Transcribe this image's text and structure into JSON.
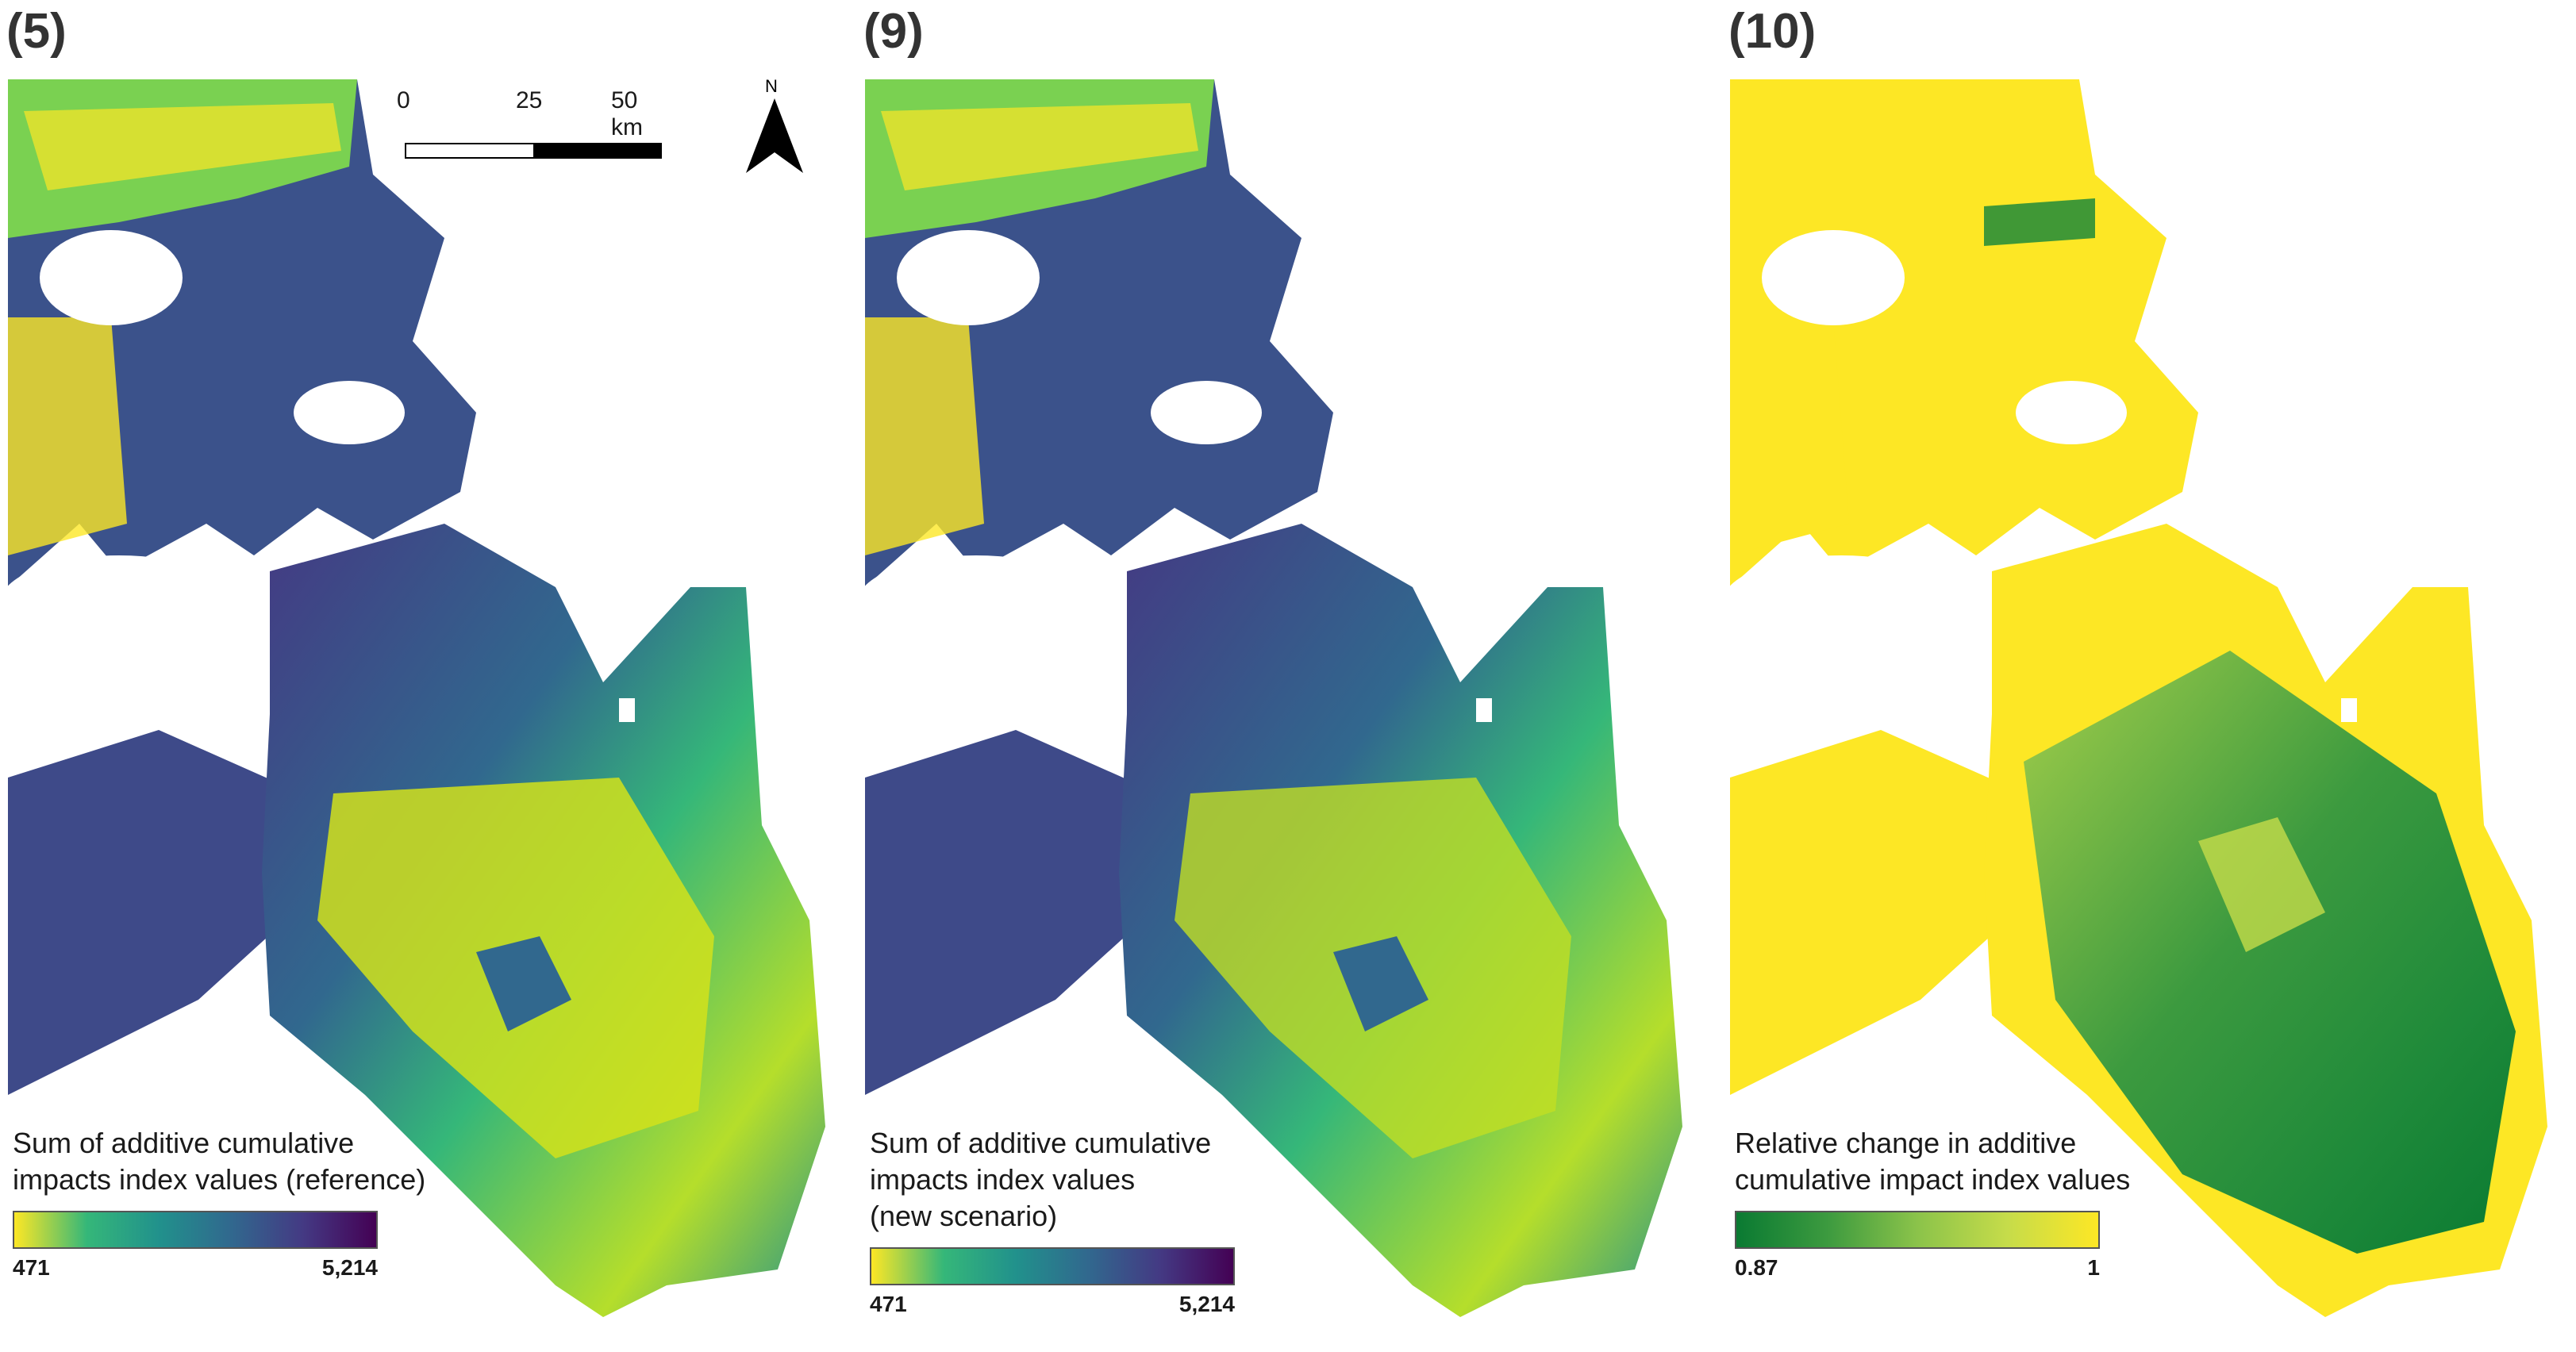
{
  "panels": [
    {
      "label": "(5)",
      "legend": {
        "title_lines": [
          "Sum of additive cumulative",
          "impacts index values (reference)"
        ],
        "min_label": "471",
        "max_label": "5,214",
        "ramp": [
          "#fde725",
          "#35b779",
          "#21918c",
          "#31688e",
          "#443983",
          "#440154"
        ]
      }
    },
    {
      "label": "(9)",
      "legend": {
        "title_lines": [
          "Sum of additive cumulative",
          "impacts index values",
          "(new scenario)"
        ],
        "min_label": "471",
        "max_label": "5,214",
        "ramp": [
          "#fde725",
          "#35b779",
          "#21918c",
          "#31688e",
          "#443983",
          "#440154"
        ]
      }
    },
    {
      "label": "(10)",
      "legend": {
        "title_lines": [
          "Relative change in additive",
          "cumulative impact index values"
        ],
        "min_label": "0.87",
        "max_label": "1",
        "ramp": [
          "#0a7a32",
          "#3c9a3f",
          "#8bc34a",
          "#c6dc4a",
          "#fde725"
        ]
      }
    }
  ],
  "scalebar": {
    "labels": [
      "0",
      "25",
      "50 km"
    ]
  },
  "north_arrow": {
    "letter": "N"
  }
}
